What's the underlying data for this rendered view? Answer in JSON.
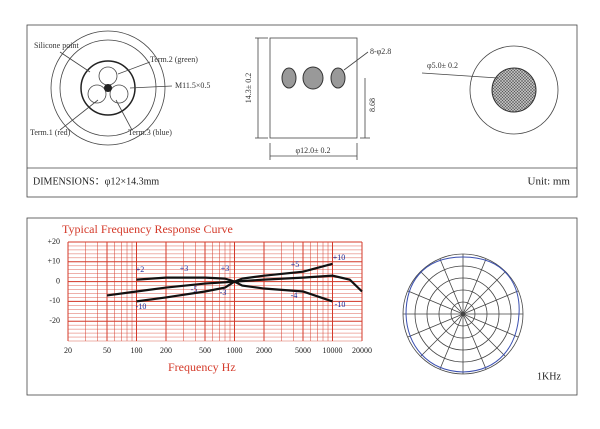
{
  "drawing": {
    "silicone": "Silicone point",
    "term2": "Term.2 (green)",
    "thread": "M11.5×0.5",
    "term1": "Term.1 (red)",
    "term3": "Term.3 (blue)",
    "height": "14.3± 0.2",
    "holes": "8-φ2.8",
    "hole_pos": "8.68",
    "diameter": "φ12.0± 0.2",
    "inner": "φ5.0± 0.2",
    "footer": "DIMENSIONS：φ12×14.3mm",
    "unit": "Unit: mm"
  },
  "chart_data": {
    "type": "line",
    "title": "Typical Frequency Response Curve",
    "x_label": "Frequency   Hz",
    "log_x": true,
    "grid": true,
    "grid_color": "#d43a2a",
    "xlim": [
      20,
      20000
    ],
    "xticks": [
      20,
      50,
      100,
      200,
      500,
      1000,
      2000,
      5000,
      10000,
      20000
    ],
    "ylim": [
      -30,
      20
    ],
    "yticks": [
      {
        "value": 20,
        "label": "+20"
      },
      {
        "value": 10,
        "label": "+10"
      },
      0,
      -10,
      -20
    ],
    "series": [
      {
        "x": [
          100,
          200,
          500,
          800,
          1000,
          1200,
          2000,
          5000,
          10000
        ],
        "values": [
          1,
          2,
          2,
          1.5,
          0,
          1.5,
          3,
          5,
          9
        ],
        "color": "#111"
      },
      {
        "x": [
          50,
          100,
          200,
          500,
          1000,
          2000,
          5000,
          10000,
          15000,
          20000
        ],
        "values": [
          -7,
          -5,
          -3,
          -1,
          0,
          1,
          2,
          3,
          1,
          -5
        ],
        "color": "#111"
      },
      {
        "x": [
          100,
          200,
          500,
          800,
          1000,
          1200,
          2000,
          5000,
          10000
        ],
        "values": [
          -10,
          -8,
          -5,
          -3,
          0,
          -2,
          -3.5,
          -5,
          -10
        ],
        "color": "#111"
      }
    ],
    "annotations": [
      "+2",
      "+3",
      "+3",
      "+5",
      "+10",
      "-5",
      "-3",
      "-4",
      "-10",
      "-10"
    ]
  },
  "polar_label": "1KHz"
}
